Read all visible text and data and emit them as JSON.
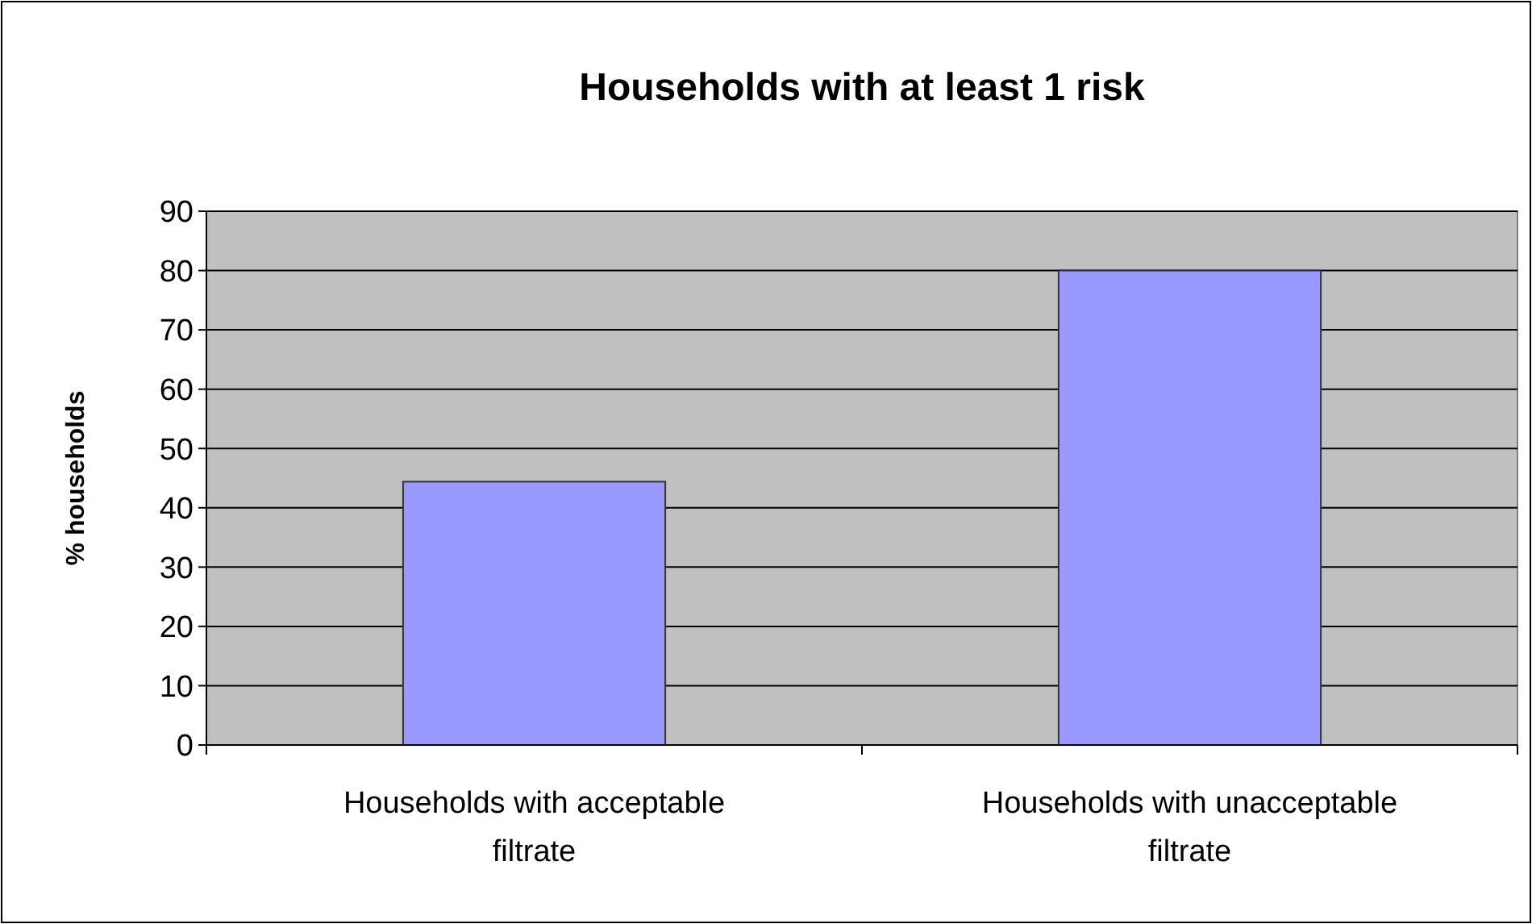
{
  "chart_data": {
    "type": "bar",
    "title": "Households with at least 1 risk",
    "ylabel": "% households",
    "categories": [
      "Households with acceptable filtrate",
      "Households with unacceptable filtrate"
    ],
    "values": [
      44.4,
      80
    ],
    "color": "#9999ff",
    "ylim": [
      0,
      90
    ],
    "yticks": [
      0,
      10,
      20,
      30,
      40,
      50,
      60,
      70,
      80,
      90
    ],
    "grid": "y"
  }
}
